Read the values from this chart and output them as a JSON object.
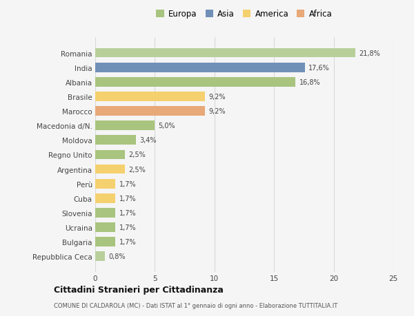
{
  "countries": [
    "Repubblica Ceca",
    "Bulgaria",
    "Ucraina",
    "Slovenia",
    "Cuba",
    "Perù",
    "Argentina",
    "Regno Unito",
    "Moldova",
    "Macedonia d/N.",
    "Marocco",
    "Brasile",
    "Albania",
    "India",
    "Romania"
  ],
  "values": [
    0.8,
    1.7,
    1.7,
    1.7,
    1.7,
    1.7,
    2.5,
    2.5,
    3.4,
    5.0,
    9.2,
    9.2,
    16.8,
    17.6,
    21.8
  ],
  "labels": [
    "0,8%",
    "1,7%",
    "1,7%",
    "1,7%",
    "1,7%",
    "1,7%",
    "2,5%",
    "2,5%",
    "3,4%",
    "5,0%",
    "9,2%",
    "9,2%",
    "16,8%",
    "17,6%",
    "21,8%"
  ],
  "colors": [
    "#b8cf9a",
    "#a8c47e",
    "#a8c47e",
    "#a8c47e",
    "#f5d06e",
    "#f5d06e",
    "#f5d06e",
    "#a8c47e",
    "#a8c47e",
    "#a8c47e",
    "#e8a878",
    "#f5d06e",
    "#a8c47e",
    "#7090b8",
    "#b8cf9a"
  ],
  "continent_colors": {
    "Europa": "#a8c47e",
    "Asia": "#7090b8",
    "America": "#f5d06e",
    "Africa": "#e8a878"
  },
  "legend_labels": [
    "Europa",
    "Asia",
    "America",
    "Africa"
  ],
  "xlim": [
    0,
    25
  ],
  "xticks": [
    0,
    5,
    10,
    15,
    20,
    25
  ],
  "title": "Cittadini Stranieri per Cittadinanza",
  "subtitle": "COMUNE DI CALDAROLA (MC) - Dati ISTAT al 1° gennaio di ogni anno - Elaborazione TUTTITALIA.IT",
  "bg_color": "#f5f5f5",
  "bar_height": 0.65,
  "grid_color": "#d8d8d8"
}
